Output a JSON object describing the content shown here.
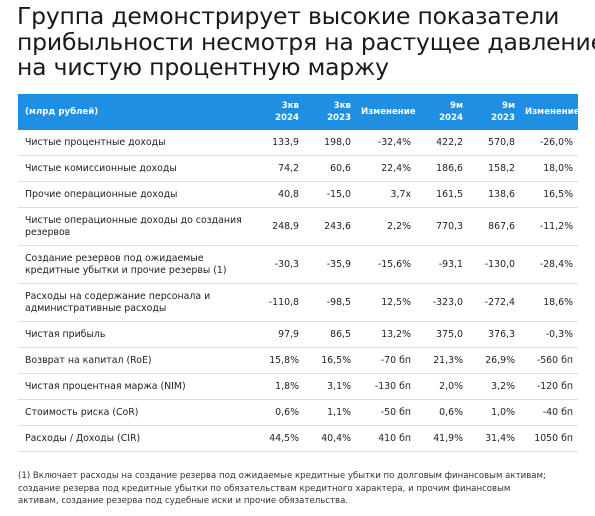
{
  "title_lines": [
    "Группа демонстрирует высокие показатели",
    "прибыльности несмотря на растущее давление",
    "на чистую процентную маржу"
  ],
  "table": {
    "headers": [
      [
        "(млрд рублей)"
      ],
      [
        "3кв",
        "2024"
      ],
      [
        "3кв",
        "2023"
      ],
      [
        "Изменение"
      ],
      [
        "9м",
        "2024"
      ],
      [
        "9м",
        "2023"
      ],
      [
        "Изменение"
      ]
    ],
    "rows": [
      {
        "label": [
          "Чистые процентные доходы"
        ],
        "values": [
          "133,9",
          "198,0",
          "-32,4%",
          "422,2",
          "570,8",
          "-26,0%"
        ]
      },
      {
        "label": [
          "Чистые комиссионные доходы"
        ],
        "values": [
          "74,2",
          "60,6",
          "22,4%",
          "186,6",
          "158,2",
          "18,0%"
        ]
      },
      {
        "label": [
          "Прочие операционные доходы"
        ],
        "values": [
          "40,8",
          "-15,0",
          "3,7x",
          "161,5",
          "138,6",
          "16,5%"
        ]
      },
      {
        "label": [
          "Чистые операционные доходы до создания",
          "резервов"
        ],
        "values": [
          "248,9",
          "243,6",
          "2,2%",
          "770,3",
          "867,6",
          "-11,2%"
        ]
      },
      {
        "label": [
          "Создание резервов под ожидаемые",
          "кредитные убытки и прочие резервы (1)"
        ],
        "values": [
          "-30,3",
          "-35,9",
          "-15,6%",
          "-93,1",
          "-130,0",
          "-28,4%"
        ]
      },
      {
        "label": [
          "Расходы на содержание персонала и",
          "административные расходы"
        ],
        "values": [
          "-110,8",
          "-98,5",
          "12,5%",
          "-323,0",
          "-272,4",
          "18,6%"
        ]
      },
      {
        "label": [
          "Чистая прибыль"
        ],
        "values": [
          "97,9",
          "86,5",
          "13,2%",
          "375,0",
          "376,3",
          "-0,3%"
        ]
      },
      {
        "label": [
          "Возврат на капитал (RoE)"
        ],
        "values": [
          "15,8%",
          "16,5%",
          "-70 бп",
          "21,3%",
          "26,9%",
          "-560 бп"
        ]
      },
      {
        "label": [
          "Чистая процентная маржа (NIM)"
        ],
        "values": [
          "1,8%",
          "3,1%",
          "-130 бп",
          "2,0%",
          "3,2%",
          "-120 бп"
        ]
      },
      {
        "label": [
          "Стоимость риска (CoR)"
        ],
        "values": [
          "0,6%",
          "1,1%",
          "-50 бп",
          "0,6%",
          "1,0%",
          "-40 бп"
        ]
      },
      {
        "label": [
          "Расходы / Доходы (CIR)"
        ],
        "values": [
          "44,5%",
          "40,4%",
          "410 бп",
          "41,9%",
          "31,4%",
          "1050 бп"
        ]
      }
    ]
  },
  "footnote_lines": [
    "(1) Включает расходы на создание резерва под ожидаемые кредитные убытки по долговым финансовым активам;",
    "создание резерва под кредитные убытки по обязательствам кредитного характера, и прочим финансовым",
    "активам, создание резерва под судебные иски и прочие обязательства."
  ],
  "colors": {
    "header_bg": "#1f8fe3",
    "header_text": "#ffffff",
    "row_divider": "#d9dde3"
  }
}
